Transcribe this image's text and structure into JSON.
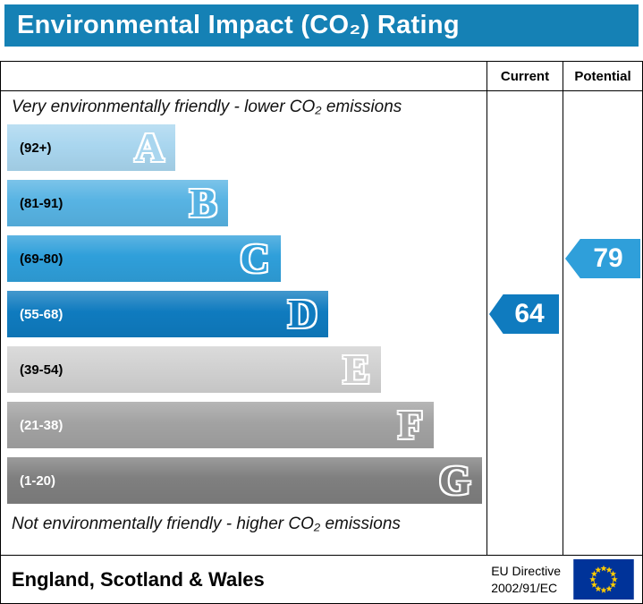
{
  "title": "Environmental Impact (CO₂) Rating",
  "columns": {
    "current": "Current",
    "potential": "Potential"
  },
  "captions": {
    "top": "Very environmentally friendly - lower CO₂ emissions",
    "bottom": "Not environmentally friendly - higher CO₂ emissions"
  },
  "chart_data": {
    "type": "bar",
    "title": "Environmental Impact (CO₂) Rating",
    "bands": [
      {
        "letter": "A",
        "range": "(92+)",
        "color": "#a9d6ef",
        "label_color": "#000000",
        "width_pct": 35
      },
      {
        "letter": "B",
        "range": "(81-91)",
        "color": "#57b3e3",
        "label_color": "#000000",
        "width_pct": 46
      },
      {
        "letter": "C",
        "range": "(69-80)",
        "color": "#2f9fda",
        "label_color": "#000000",
        "width_pct": 57
      },
      {
        "letter": "D",
        "range": "(55-68)",
        "color": "#0f7bbf",
        "label_color": "#ffffff",
        "width_pct": 67
      },
      {
        "letter": "E",
        "range": "(39-54)",
        "color": "#d1d1d1",
        "label_color": "#000000",
        "width_pct": 78
      },
      {
        "letter": "F",
        "range": "(21-38)",
        "color": "#a2a2a2",
        "label_color": "#ffffff",
        "width_pct": 89
      },
      {
        "letter": "G",
        "range": "(1-20)",
        "color": "#7f7f7f",
        "label_color": "#ffffff",
        "width_pct": 99
      }
    ],
    "current": {
      "value": 64,
      "band": "D",
      "color": "#0f7bbf"
    },
    "potential": {
      "value": 79,
      "band": "C",
      "color": "#2f9fda"
    }
  },
  "footer": {
    "region": "England, Scotland & Wales",
    "directive_line1": "EU Directive",
    "directive_line2": "2002/91/EC",
    "eu_flag_colors": {
      "field": "#003399",
      "stars": "#ffcc00"
    }
  }
}
